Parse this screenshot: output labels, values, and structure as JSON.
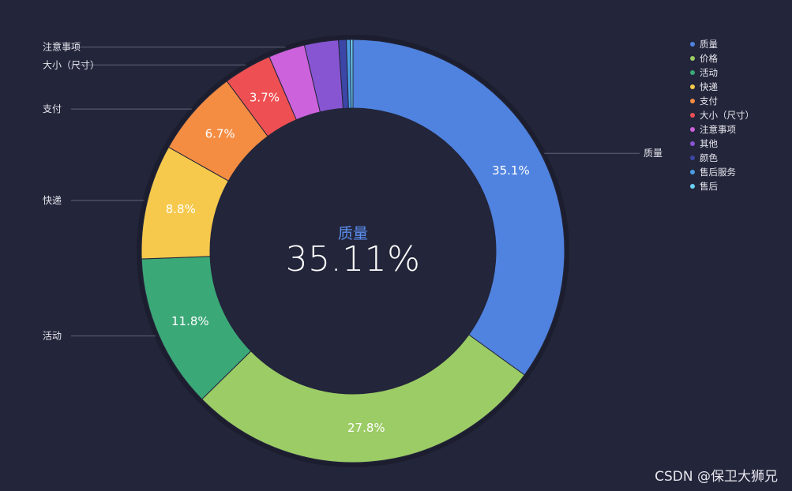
{
  "chart_data": {
    "type": "pie",
    "categories": [
      "质量",
      "价格",
      "活动",
      "快递",
      "支付",
      "大小（尺寸）",
      "注意事项",
      "其他",
      "颜色",
      "售后服务",
      "售后"
    ],
    "values": [
      35.1,
      27.8,
      11.8,
      8.8,
      6.7,
      3.7,
      2.8,
      2.6,
      0.6,
      0.3,
      0.2
    ],
    "value_labels": [
      "35.1%",
      "27.8%",
      "11.8%",
      "8.8%",
      "6.7%",
      "3.7%",
      "",
      "",
      "",
      "",
      ""
    ],
    "outer_labels": [
      "质量",
      "",
      "活动",
      "快递",
      "支付",
      "大小（尺寸）",
      "注意事项",
      "",
      "",
      "",
      ""
    ],
    "colors": [
      "#5083e0",
      "#9ccc65",
      "#3ba878",
      "#f6c94c",
      "#f48c42",
      "#ee4f52",
      "#cc62dc",
      "#8855d2",
      "#3c46a6",
      "#4b9ee4",
      "#6ad0f4"
    ],
    "legend": {
      "position": "top-right"
    },
    "center": {
      "name": "质量",
      "value": "35.11%"
    }
  },
  "watermark": "CSDN @保卫大狮兄"
}
